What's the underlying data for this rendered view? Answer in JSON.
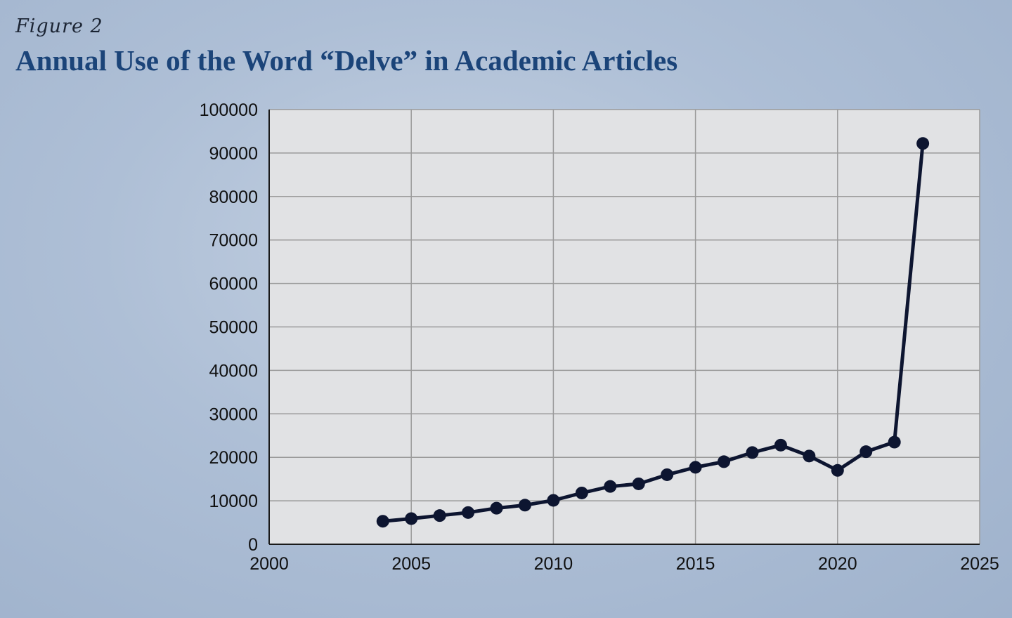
{
  "figure": {
    "caption": "Figure 2",
    "title": "Annual Use of the Word “Delve” in Academic Articles"
  },
  "chart_data": {
    "type": "line",
    "title": "Annual Use of the Word “Delve” in Academic Articles",
    "xlabel": "",
    "ylabel": "",
    "xlim": [
      2000,
      2025
    ],
    "ylim": [
      0,
      100000
    ],
    "x_ticks": [
      2000,
      2005,
      2010,
      2015,
      2020,
      2025
    ],
    "y_ticks": [
      0,
      10000,
      20000,
      30000,
      40000,
      50000,
      60000,
      70000,
      80000,
      90000,
      100000
    ],
    "grid": true,
    "legend": "none",
    "series": [
      {
        "x": [
          2004,
          2005,
          2006,
          2007,
          2008,
          2009,
          2010,
          2011,
          2012,
          2013,
          2014,
          2015,
          2016,
          2017,
          2018,
          2019,
          2020,
          2021,
          2022,
          2023
        ],
        "values": [
          5300,
          5900,
          6600,
          7300,
          8300,
          9000,
          10100,
          11800,
          13300,
          13900,
          16000,
          17700,
          19000,
          21100,
          22800,
          20300,
          17000,
          21300,
          23500,
          92200
        ],
        "color": "#0d1530"
      }
    ],
    "colors": {
      "plot_background": "#e1e2e4",
      "grid": "#9a9a9a",
      "line": "#0d1530",
      "title": "#1b4479"
    }
  }
}
